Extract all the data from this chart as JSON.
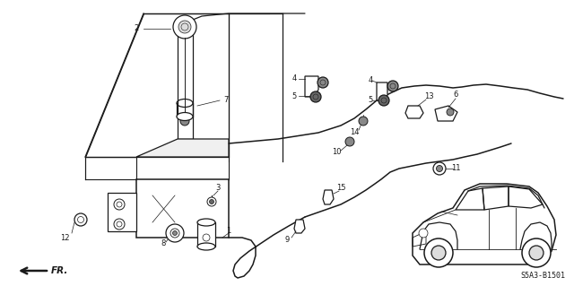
{
  "bg_color": "#ffffff",
  "line_color": "#1a1a1a",
  "diagram_code": "S5A3-B1501",
  "fig_width": 6.4,
  "fig_height": 3.19
}
